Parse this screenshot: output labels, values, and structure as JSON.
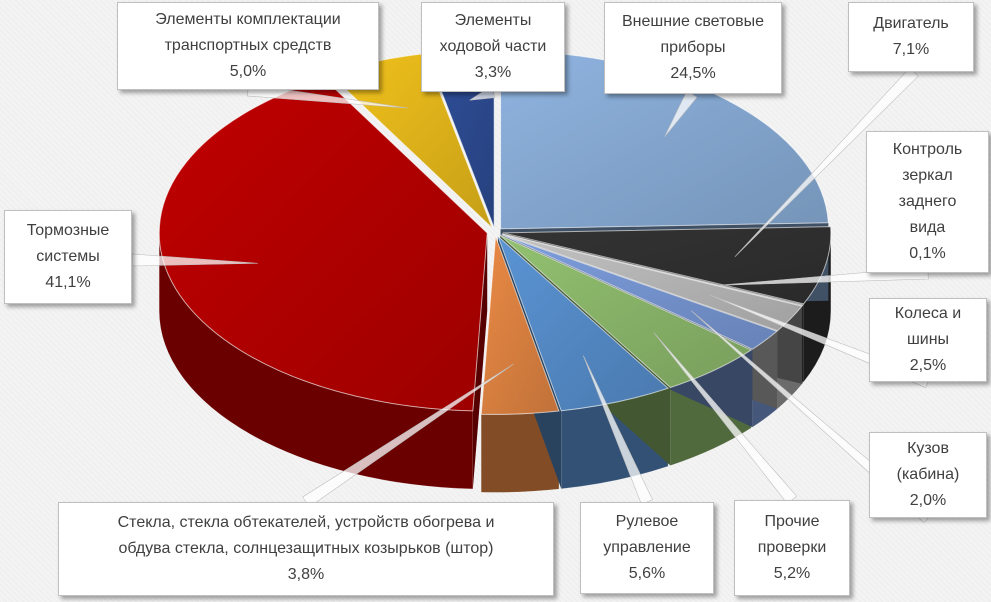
{
  "chart_data": {
    "type": "pie",
    "style": "3d-exploded",
    "slices": [
      {
        "label_lines": [
          "Внешние световые",
          "приборы"
        ],
        "value": "24,5%",
        "pct": 24.5,
        "color": "#8fb4e0"
      },
      {
        "label_lines": [
          "Двигатель"
        ],
        "value": "7,1%",
        "pct": 7.1,
        "color": "#333333"
      },
      {
        "label_lines": [
          "Контроль",
          "зеркал",
          "заднего",
          "вида"
        ],
        "value": "0,1%",
        "pct": 0.1,
        "color": "#9a9a9a"
      },
      {
        "label_lines": [
          "Колеса и",
          "шины"
        ],
        "value": "2,5%",
        "pct": 2.5,
        "color": "#c3c3c3"
      },
      {
        "label_lines": [
          "Кузов",
          "(кабина)"
        ],
        "value": "2,0%",
        "pct": 2.0,
        "color": "#7d9ede"
      },
      {
        "label_lines": [
          "Прочие",
          "проверки"
        ],
        "value": "5,2%",
        "pct": 5.2,
        "color": "#92c170"
      },
      {
        "label_lines": [
          "Рулевое",
          "управление"
        ],
        "value": "5,6%",
        "pct": 5.6,
        "color": "#5a94d4"
      },
      {
        "label_lines": [
          "Стекла, стекла обтекателей, устройств обогрева и",
          "обдува стекла, солнцезащитных козырьков (штор)"
        ],
        "value": "3,8%",
        "pct": 3.8,
        "color": "#ea8a45"
      },
      {
        "label_lines": [
          "Тормозные",
          "системы"
        ],
        "value": "41,1%",
        "pct": 41.1,
        "color": "#c00000"
      },
      {
        "label_lines": [
          "Элементы комплектации",
          "транспортных средств"
        ],
        "value": "5,0%",
        "pct": 5.0,
        "color": "#f2c21c"
      },
      {
        "label_lines": [
          "Элементы",
          "ходовой части"
        ],
        "value": "3,3%",
        "pct": 3.3,
        "color": "#2f4f9a"
      }
    ]
  }
}
